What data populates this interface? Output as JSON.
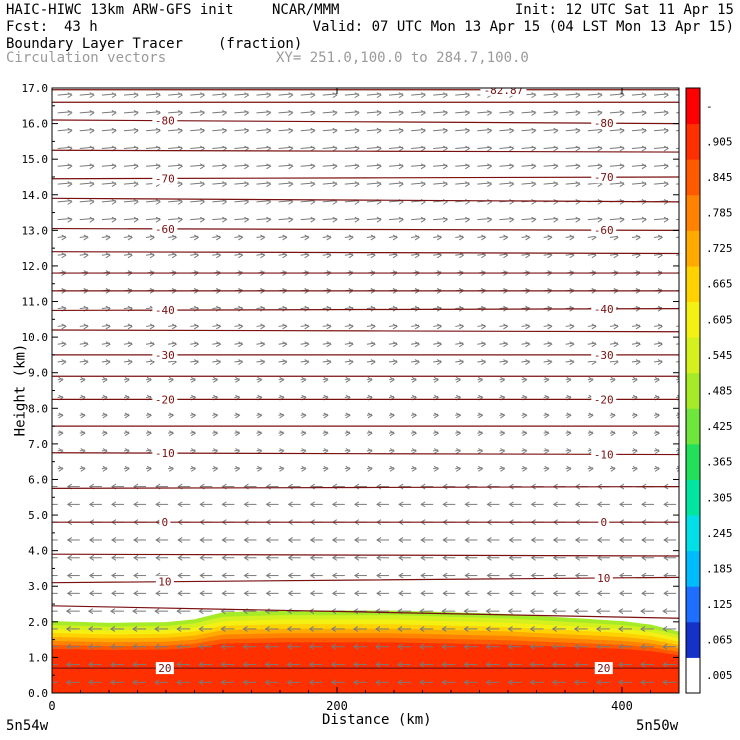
{
  "header": {
    "title_left": "HAIC-HIWC 13km ARW-GFS init",
    "org": "NCAR/MMM",
    "init": "Init: 12 UTC Sat 11 Apr 15",
    "fcst_label": "Fcst:",
    "fcst_value": "43 h",
    "valid": "Valid: 07 UTC Mon 13 Apr 15 (04 LST Mon 13 Apr 15)",
    "field_name": "Boundary Layer Tracer",
    "field_units": "(fraction)",
    "vector_label": "Circulation vectors",
    "xsec_label": "XY= 251.0,100.0 to 284.7,100.0"
  },
  "chart_data": {
    "type": "area",
    "title": "Boundary Layer Tracer",
    "xlabel": "Distance (km)",
    "ylabel": "Height (km)",
    "xlim": [
      0,
      440
    ],
    "ylim": [
      0,
      17
    ],
    "x_ticks": [
      0,
      200,
      400
    ],
    "y_ticks": [
      "0.0",
      "1.0",
      "2.0",
      "3.0",
      "4.0",
      "5.0",
      "6.0",
      "7.0",
      "8.0",
      "9.0",
      "10.0",
      "11.0",
      "12.0",
      "13.0",
      "14.0",
      "15.0",
      "16.0",
      "17.0"
    ],
    "endpoints": {
      "left": "5n54w",
      "right": "5n50w"
    },
    "colorbar": {
      "labels": [
        ".005",
        ".065",
        ".125",
        ".185",
        ".245",
        ".305",
        ".365",
        ".425",
        ".485",
        ".545",
        ".605",
        ".665",
        ".725",
        ".785",
        ".845",
        ".905",
        "-"
      ],
      "colors": [
        "#ffffff",
        "#1432c8",
        "#1e6eff",
        "#00bcff",
        "#00e0e6",
        "#00e6a0",
        "#22e05a",
        "#6ee63c",
        "#a6eb28",
        "#d4f01e",
        "#f5f014",
        "#ffd200",
        "#ffaa00",
        "#ff8200",
        "#ff5a00",
        "#ff3000",
        "#ff0000"
      ]
    },
    "tracer_top_km": {
      "x": [
        0,
        40,
        80,
        100,
        120,
        160,
        200,
        240,
        280,
        320,
        360,
        380,
        400,
        420,
        440
      ],
      "y": [
        2.05,
        2.0,
        2.02,
        2.1,
        2.3,
        2.35,
        2.35,
        2.35,
        2.3,
        2.25,
        2.15,
        2.1,
        2.05,
        1.95,
        1.75
      ]
    },
    "isotherms": {
      "units": "degC",
      "lines": [
        {
          "label": "-82.87",
          "h": [
            16.95,
            16.95
          ]
        },
        {
          "label": "",
          "h": [
            16.6,
            16.6
          ]
        },
        {
          "label": "-80",
          "h": [
            16.1,
            16.0
          ]
        },
        {
          "label": "",
          "h": [
            15.25,
            15.2
          ]
        },
        {
          "label": "-70",
          "h": [
            14.45,
            14.5
          ]
        },
        {
          "label": "",
          "h": [
            13.9,
            13.8
          ]
        },
        {
          "label": "-60",
          "h": [
            13.05,
            13.0
          ]
        },
        {
          "label": "",
          "h": [
            12.4,
            12.35
          ]
        },
        {
          "label": "",
          "h": [
            11.8,
            11.8
          ]
        },
        {
          "label": "",
          "h": [
            11.3,
            11.3
          ]
        },
        {
          "label": "-40",
          "h": [
            10.75,
            10.8
          ]
        },
        {
          "label": "",
          "h": [
            10.2,
            10.15
          ]
        },
        {
          "label": "-30",
          "h": [
            9.5,
            9.5
          ]
        },
        {
          "label": "",
          "h": [
            8.9,
            8.9
          ]
        },
        {
          "label": "-20",
          "h": [
            8.25,
            8.25
          ]
        },
        {
          "label": "",
          "h": [
            7.5,
            7.5
          ]
        },
        {
          "label": "-10",
          "h": [
            6.75,
            6.7
          ]
        },
        {
          "label": "",
          "h": [
            5.75,
            5.8
          ]
        },
        {
          "label": "0",
          "h": [
            4.8,
            4.8
          ]
        },
        {
          "label": "",
          "h": [
            3.9,
            3.85
          ]
        },
        {
          "label": "10",
          "h": [
            3.1,
            3.25
          ]
        },
        {
          "label": "",
          "h": [
            2.45,
            2.1
          ]
        },
        {
          "label": "20",
          "h": [
            0.7,
            0.7
          ]
        }
      ]
    },
    "vectors": {
      "upper_dir": "east",
      "lower_dir": "west",
      "shift_height_km": 6.0
    },
    "grid": false,
    "legend": "right"
  }
}
